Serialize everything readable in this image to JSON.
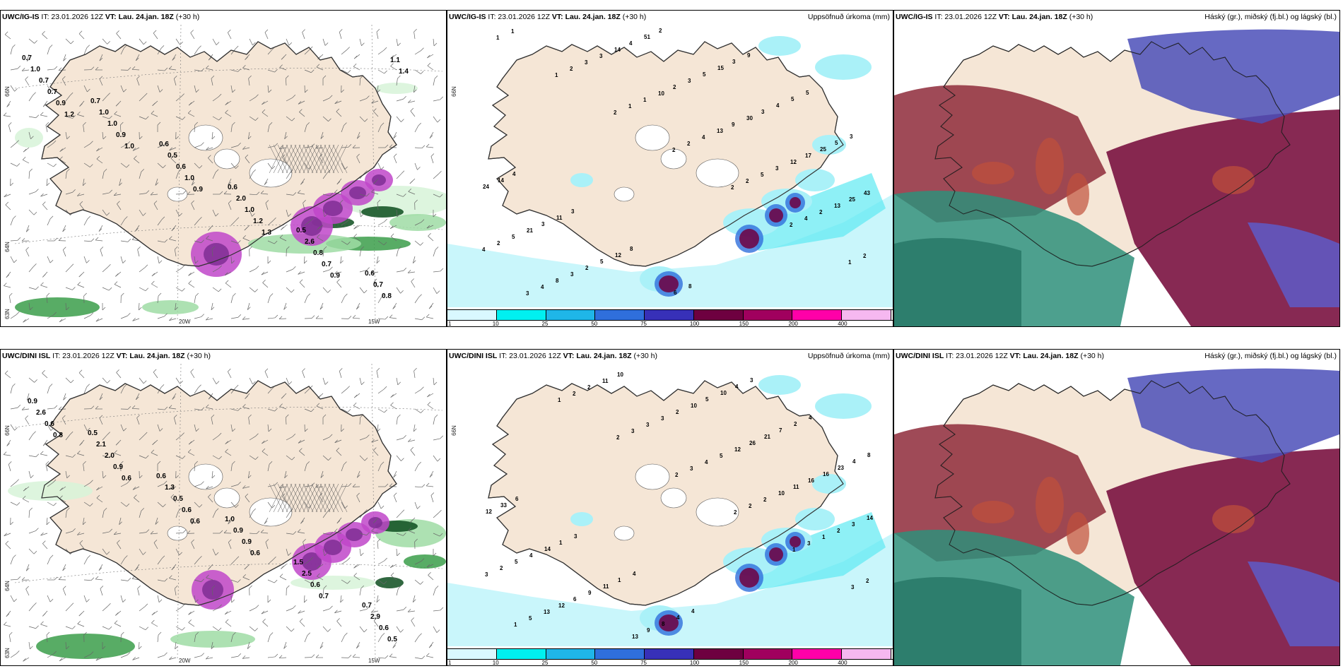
{
  "panels": [
    {
      "id": "p1",
      "model": "UWC/IG-IS",
      "it_label": "IT: 23.01.2026 12Z",
      "vt_label": "VT: Lau. 24.jan. 18Z",
      "lead": "(+30 h)",
      "right_title": "",
      "type": "wind",
      "lat_labels": [
        "66N",
        "64N",
        "63N"
      ],
      "lon_labels": [
        "20W",
        "15W"
      ],
      "values": [
        "0.7",
        "0.7",
        "0.6",
        "0.6",
        "0.5",
        "0.6",
        "1.0",
        "1.0",
        "0.5",
        "2.0",
        "2.6",
        "0.7",
        "0.7",
        "1.0",
        "0.6",
        "1.0",
        "0.8",
        "0.8",
        "0.7",
        "0.9",
        "1.0",
        "1.2",
        "0.7",
        "1.1",
        "0.9",
        "1.0",
        "0.9",
        "1.3",
        "0.9",
        "1.4",
        "1.2"
      ]
    },
    {
      "id": "p2",
      "model": "UWC/IG-IS",
      "it_label": "IT: 23.01.2026 12Z",
      "vt_label": "VT: Lau. 24.jan. 18Z",
      "lead": "(+30 h)",
      "right_title": "Uppsöfnuð úrkoma (mm)",
      "type": "precip",
      "lat_labels": [
        "66N"
      ],
      "values": [
        "1",
        "1",
        "2",
        "2",
        "2",
        "2",
        "1",
        "1",
        "2",
        "1",
        "2",
        "2",
        "4",
        "2",
        "3",
        "3",
        "1",
        "4",
        "5",
        "2",
        "4",
        "4",
        "3",
        "10",
        "13",
        "3",
        "13",
        "2",
        "8",
        "14",
        "2",
        "9",
        "12",
        "25",
        "5",
        "3",
        "4",
        "3",
        "30",
        "17",
        "43",
        "21",
        "2",
        "51",
        "5",
        "3",
        "25",
        "24",
        "3",
        "5",
        "2",
        "15",
        "4",
        "5",
        "14",
        "11",
        "12",
        "6",
        "3",
        "5",
        "3",
        "4",
        "3",
        "8",
        "8",
        "9",
        "5"
      ]
    },
    {
      "id": "p3",
      "model": "UWC/IG-IS",
      "it_label": "IT: 23.01.2026 12Z",
      "vt_label": "VT: Lau. 24.jan. 18Z",
      "lead": "(+30 h)",
      "right_title": "Háský (gr.), miðský (fj.bl.) og lágský (bl.)",
      "type": "cloud"
    },
    {
      "id": "p4",
      "model": "UWC/DINI ISL",
      "it_label": "IT: 23.01.2026 12Z",
      "vt_label": "VT: Lau. 24.jan. 18Z",
      "lead": "(+30 h)",
      "right_title": "",
      "type": "wind",
      "lat_labels": [
        "66N",
        "64N",
        "63N"
      ],
      "lon_labels": [
        "20W",
        "15W"
      ],
      "values": [
        "0.5",
        "0.6",
        "1.0",
        "1.5",
        "0.7",
        "0.9",
        "2.1",
        "1.3",
        "0.9",
        "2.5",
        "2.9",
        "2.6",
        "2.0",
        "0.5",
        "0.9",
        "0.6",
        "0.6",
        "0.6",
        "0.9",
        "0.6",
        "0.6",
        "0.7",
        "0.5",
        "0.8",
        "0.6",
        "0.6"
      ]
    },
    {
      "id": "p5",
      "model": "UWC/DINI ISL",
      "it_label": "IT: 23.01.2026 12Z",
      "vt_label": "VT: Lau. 24.jan. 18Z",
      "lead": "(+30 h)",
      "right_title": "Uppsöfnuð úrkoma (mm)",
      "type": "precip",
      "lat_labels": [
        "66N"
      ],
      "values": [
        "1",
        "2",
        "2",
        "2",
        "1",
        "3",
        "1",
        "2",
        "3",
        "3",
        "2",
        "3",
        "2",
        "5",
        "2",
        "3",
        "4",
        "2",
        "1",
        "3",
        "13",
        "11",
        "3",
        "5",
        "10",
        "2",
        "2",
        "12",
        "10",
        "2",
        "12",
        "11",
        "3",
        "5",
        "6",
        "13",
        "10",
        "26",
        "16",
        "14",
        "4",
        "9",
        "9",
        "5",
        "21",
        "16",
        "12",
        "14",
        "11",
        "8",
        "10",
        "7",
        "23",
        "33",
        "1",
        "1",
        "4",
        "4",
        "2",
        "4",
        "6",
        "3",
        "4",
        "4",
        "3",
        "4",
        "8"
      ]
    },
    {
      "id": "p6",
      "model": "UWC/DINI ISL",
      "it_label": "IT: 23.01.2026 12Z",
      "vt_label": "VT: Lau. 24.jan. 18Z",
      "lead": "(+30 h)",
      "right_title": "Háský (gr.), miðský (fj.bl.) og lágský (bl.)",
      "type": "cloud"
    }
  ],
  "colorbar": {
    "ticks": [
      "1",
      "10",
      "25",
      "50",
      "75",
      "100",
      "150",
      "200",
      "400"
    ],
    "colors": [
      "#d9f8ff",
      "#00f0f0",
      "#1fb6e8",
      "#2f6fdc",
      "#3730b8",
      "#6e0040",
      "#a0005e",
      "#ff00a8",
      "#f6b8f0"
    ]
  }
}
